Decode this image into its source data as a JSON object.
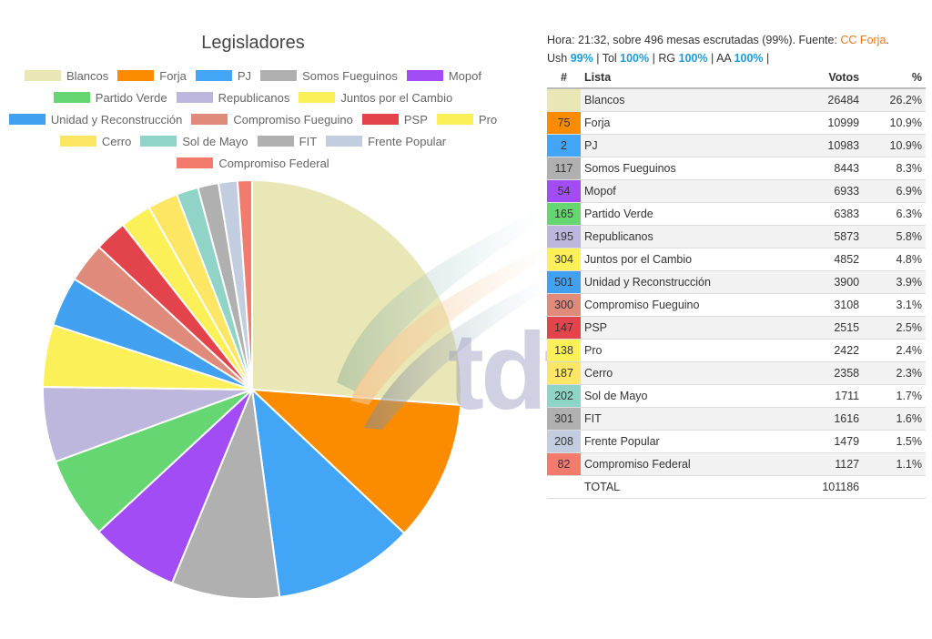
{
  "info": {
    "line1_prefix": "Hora: 21:32, sobre 496 mesas escrutadas (99%). Fuente: ",
    "source_link": "CC Forja",
    "line1_suffix": ".",
    "regions": [
      {
        "label": "Ush",
        "value": "99%"
      },
      {
        "label": "Tol",
        "value": "100%"
      },
      {
        "label": "RG",
        "value": "100%"
      },
      {
        "label": "AA",
        "value": "100%"
      }
    ]
  },
  "table": {
    "headers": {
      "num": "#",
      "lista": "Lista",
      "votos": "Votos",
      "pct": "%"
    },
    "total_label": "TOTAL",
    "total_votes": "101186"
  },
  "watermark_text": "tdf",
  "chart_data": {
    "type": "pie",
    "title": "Legisladores",
    "series": [
      {
        "name": "Blancos",
        "number": "",
        "votes": 26484,
        "pct": "26.2%",
        "color": "#eae7b7"
      },
      {
        "name": "Forja",
        "number": "75",
        "votes": 10999,
        "pct": "10.9%",
        "color": "#fb8c00"
      },
      {
        "name": "PJ",
        "number": "2",
        "votes": 10983,
        "pct": "10.9%",
        "color": "#42a5f5"
      },
      {
        "name": "Somos Fueguinos",
        "number": "117",
        "votes": 8443,
        "pct": "8.3%",
        "color": "#b0b0b0"
      },
      {
        "name": "Mopof",
        "number": "54",
        "votes": 6933,
        "pct": "6.9%",
        "color": "#a24cf5"
      },
      {
        "name": "Partido Verde",
        "number": "165",
        "votes": 6383,
        "pct": "6.3%",
        "color": "#66d672"
      },
      {
        "name": "Republicanos",
        "number": "195",
        "votes": 5873,
        "pct": "5.8%",
        "color": "#bdb7dd"
      },
      {
        "name": "Juntos por el Cambio",
        "number": "304",
        "votes": 4852,
        "pct": "4.8%",
        "color": "#fcf058"
      },
      {
        "name": "Unidad y Reconstrucción",
        "number": "501",
        "votes": 3900,
        "pct": "3.9%",
        "color": "#42a0f0"
      },
      {
        "name": "Compromiso Fueguino",
        "number": "300",
        "votes": 3108,
        "pct": "3.1%",
        "color": "#e08a7c"
      },
      {
        "name": "PSP",
        "number": "147",
        "votes": 2515,
        "pct": "2.5%",
        "color": "#e3434a"
      },
      {
        "name": "Pro",
        "number": "138",
        "votes": 2422,
        "pct": "2.4%",
        "color": "#fcf058"
      },
      {
        "name": "Cerro",
        "number": "187",
        "votes": 2358,
        "pct": "2.3%",
        "color": "#fce664"
      },
      {
        "name": "Sol de Mayo",
        "number": "202",
        "votes": 1711,
        "pct": "1.7%",
        "color": "#8fd4c6"
      },
      {
        "name": "FIT",
        "number": "301",
        "votes": 1616,
        "pct": "1.6%",
        "color": "#b0b0b0"
      },
      {
        "name": "Frente Popular",
        "number": "208",
        "votes": 1479,
        "pct": "1.5%",
        "color": "#c2cee0"
      },
      {
        "name": "Compromiso Federal",
        "number": "82",
        "votes": 1127,
        "pct": "1.1%",
        "color": "#f37b6e"
      }
    ]
  }
}
